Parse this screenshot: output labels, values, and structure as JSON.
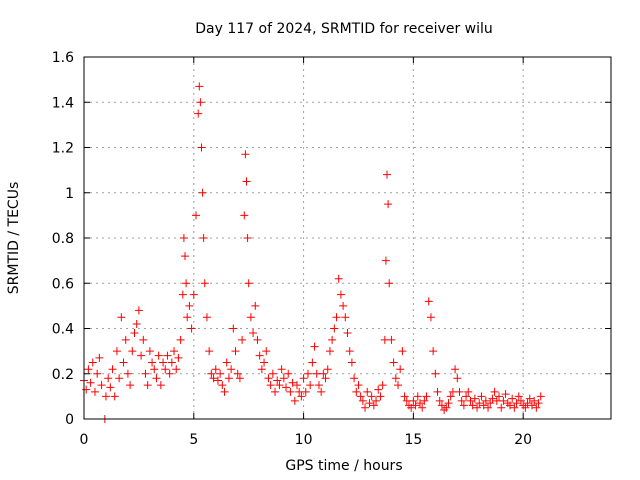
{
  "chart_data": {
    "type": "scatter",
    "title": "Day 117 of 2024, SRMTID for receiver wilu",
    "xlabel": "GPS time / hours",
    "ylabel": "SRMTID / TECUs",
    "xlim": [
      0,
      24
    ],
    "ylim": [
      0,
      1.6
    ],
    "xticks": [
      0,
      5,
      10,
      15,
      20
    ],
    "xtick_labels": [
      "0",
      "5",
      "10",
      "15",
      "20"
    ],
    "yticks": [
      0,
      0.2,
      0.4,
      0.6,
      0.8,
      1,
      1.2,
      1.4,
      1.6
    ],
    "ytick_labels": [
      "0",
      "0.2",
      "0.4",
      "0.6",
      "0.8",
      "1",
      "1.2",
      "1.4",
      "1.6"
    ],
    "grid": true,
    "marker": "plus",
    "color": "#ff0000",
    "series": [
      {
        "name": "SRMTID",
        "x": [
          0.0,
          0.1,
          0.2,
          0.3,
          0.4,
          0.5,
          0.6,
          0.7,
          0.8,
          1.0,
          1.1,
          1.2,
          1.3,
          1.4,
          1.5,
          1.6,
          1.7,
          1.8,
          1.9,
          2.0,
          2.1,
          2.2,
          2.3,
          2.4,
          2.5,
          2.6,
          2.7,
          2.8,
          2.9,
          3.0,
          3.1,
          3.2,
          3.3,
          3.4,
          3.5,
          3.6,
          3.7,
          3.8,
          3.9,
          4.0,
          4.1,
          4.2,
          4.3,
          4.4,
          4.5,
          4.55,
          4.6,
          4.65,
          4.7,
          4.8,
          4.9,
          5.0,
          5.1,
          5.2,
          5.25,
          5.3,
          5.35,
          5.4,
          5.45,
          5.5,
          5.6,
          5.7,
          5.8,
          5.9,
          6.0,
          6.1,
          6.2,
          6.3,
          6.4,
          6.5,
          6.6,
          6.7,
          6.8,
          6.9,
          7.0,
          7.1,
          7.2,
          7.3,
          7.35,
          7.4,
          7.45,
          7.5,
          7.6,
          7.7,
          7.8,
          7.9,
          8.0,
          8.1,
          8.2,
          8.3,
          8.4,
          8.5,
          8.6,
          8.7,
          8.8,
          8.9,
          9.0,
          9.1,
          9.2,
          9.3,
          9.4,
          9.5,
          9.6,
          9.7,
          9.8,
          9.9,
          10.0,
          10.1,
          10.2,
          10.3,
          10.4,
          10.5,
          10.6,
          10.7,
          10.8,
          10.9,
          11.0,
          11.1,
          11.2,
          11.3,
          11.4,
          11.5,
          11.6,
          11.7,
          11.8,
          11.9,
          12.0,
          12.1,
          12.2,
          12.3,
          12.4,
          12.5,
          12.6,
          12.7,
          12.8,
          12.9,
          13.0,
          13.1,
          13.2,
          13.3,
          13.4,
          13.5,
          13.6,
          13.7,
          13.75,
          13.8,
          13.85,
          13.9,
          14.0,
          14.1,
          14.2,
          14.3,
          14.4,
          14.5,
          14.6,
          14.7,
          14.8,
          14.9,
          15.0,
          15.1,
          15.2,
          15.3,
          15.4,
          15.5,
          15.6,
          15.7,
          15.8,
          15.9,
          16.0,
          16.1,
          16.2,
          16.3,
          16.4,
          16.5,
          16.6,
          16.7,
          16.8,
          16.9,
          17.0,
          17.1,
          17.2,
          17.3,
          17.4,
          17.5,
          17.6,
          17.7,
          17.8,
          17.9,
          18.0,
          18.1,
          18.2,
          18.3,
          18.4,
          18.5,
          18.6,
          18.7,
          18.8,
          18.9,
          19.0,
          19.1,
          19.2,
          19.3,
          19.4,
          19.5,
          19.6,
          19.7,
          19.8,
          19.9,
          20.0,
          20.1,
          20.2,
          20.3,
          20.4,
          20.5,
          20.6,
          20.7,
          20.8,
          0.95
        ],
        "y": [
          0.17,
          0.13,
          0.22,
          0.16,
          0.25,
          0.12,
          0.2,
          0.27,
          0.15,
          0.1,
          0.18,
          0.14,
          0.22,
          0.1,
          0.3,
          0.18,
          0.45,
          0.25,
          0.35,
          0.2,
          0.15,
          0.3,
          0.38,
          0.42,
          0.48,
          0.28,
          0.35,
          0.2,
          0.15,
          0.3,
          0.25,
          0.22,
          0.18,
          0.28,
          0.15,
          0.25,
          0.22,
          0.28,
          0.2,
          0.25,
          0.3,
          0.22,
          0.27,
          0.35,
          0.55,
          0.8,
          0.72,
          0.6,
          0.45,
          0.5,
          0.4,
          0.55,
          0.9,
          1.35,
          1.47,
          1.4,
          1.2,
          1.0,
          0.8,
          0.6,
          0.45,
          0.3,
          0.2,
          0.18,
          0.22,
          0.17,
          0.2,
          0.15,
          0.12,
          0.25,
          0.18,
          0.22,
          0.4,
          0.3,
          0.2,
          0.18,
          0.35,
          0.9,
          1.17,
          1.05,
          0.8,
          0.6,
          0.45,
          0.38,
          0.5,
          0.35,
          0.28,
          0.22,
          0.25,
          0.3,
          0.18,
          0.15,
          0.2,
          0.12,
          0.17,
          0.15,
          0.22,
          0.18,
          0.14,
          0.2,
          0.12,
          0.16,
          0.08,
          0.15,
          0.12,
          0.1,
          0.18,
          0.12,
          0.2,
          0.15,
          0.25,
          0.32,
          0.2,
          0.15,
          0.12,
          0.2,
          0.18,
          0.22,
          0.3,
          0.35,
          0.4,
          0.45,
          0.62,
          0.55,
          0.5,
          0.45,
          0.38,
          0.3,
          0.25,
          0.18,
          0.12,
          0.15,
          0.1,
          0.08,
          0.05,
          0.12,
          0.07,
          0.1,
          0.06,
          0.08,
          0.13,
          0.1,
          0.15,
          0.35,
          0.7,
          1.08,
          0.95,
          0.6,
          0.35,
          0.25,
          0.18,
          0.15,
          0.22,
          0.3,
          0.1,
          0.08,
          0.06,
          0.05,
          0.08,
          0.06,
          0.1,
          0.07,
          0.05,
          0.08,
          0.1,
          0.52,
          0.45,
          0.3,
          0.2,
          0.12,
          0.08,
          0.06,
          0.04,
          0.05,
          0.07,
          0.1,
          0.12,
          0.22,
          0.18,
          0.12,
          0.08,
          0.06,
          0.1,
          0.12,
          0.08,
          0.06,
          0.09,
          0.05,
          0.07,
          0.1,
          0.06,
          0.08,
          0.05,
          0.07,
          0.09,
          0.12,
          0.08,
          0.1,
          0.05,
          0.08,
          0.11,
          0.07,
          0.06,
          0.09,
          0.05,
          0.07,
          0.1,
          0.08,
          0.06,
          0.05,
          0.07,
          0.09,
          0.06,
          0.08,
          0.05,
          0.07,
          0.1,
          0.0
        ]
      }
    ]
  }
}
